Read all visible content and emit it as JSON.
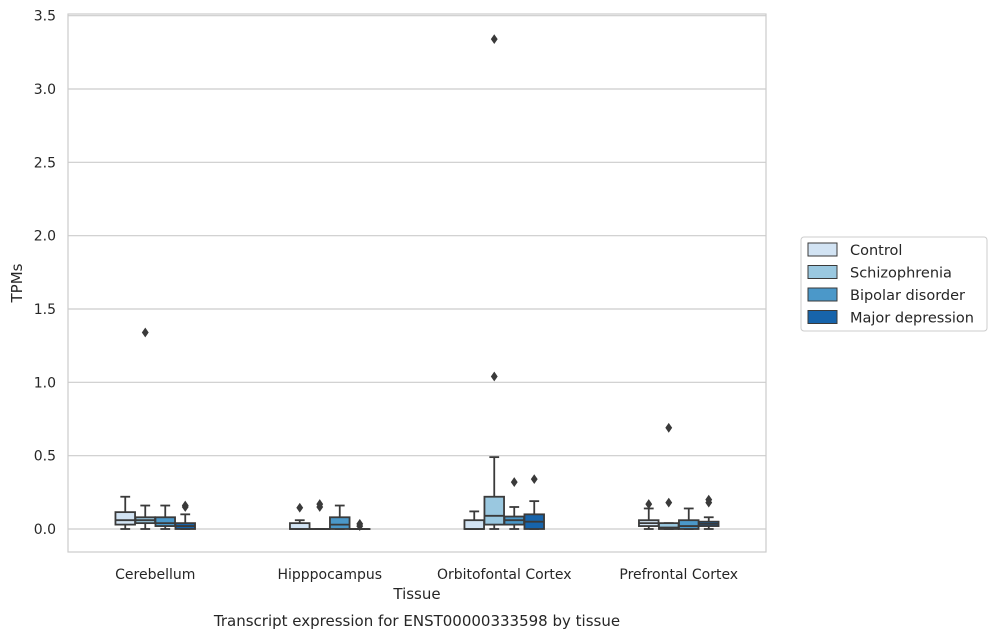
{
  "chart_data": {
    "type": "box",
    "xlabel": "Tissue",
    "ylabel": "TPMs",
    "caption": "Transcript expression for ENST00000333598 by tissue",
    "ylim": [
      -0.16,
      3.52
    ],
    "yticks": [
      "0.0",
      "0.5",
      "1.0",
      "1.5",
      "2.0",
      "2.5",
      "3.0",
      "3.5"
    ],
    "grid": "horizontal",
    "legend_position": "right",
    "categories": [
      "Cerebellum",
      "Hipppocampus",
      "Orbitofontal Cortex",
      "Prefrontal Cortex"
    ],
    "series": [
      {
        "name": "Control",
        "color": "#d2e3f3",
        "boxes": [
          {
            "whislo": 0.0,
            "q1": 0.03,
            "med": 0.06,
            "q3": 0.115,
            "whishi": 0.22,
            "fliers": []
          },
          {
            "whislo": 0.0,
            "q1": 0.0,
            "med": 0.0,
            "q3": 0.04,
            "whishi": 0.06,
            "fliers": [
              0.145
            ]
          },
          {
            "whislo": 0.0,
            "q1": 0.0,
            "med": 0.0,
            "q3": 0.06,
            "whishi": 0.12,
            "fliers": []
          },
          {
            "whislo": 0.0,
            "q1": 0.02,
            "med": 0.04,
            "q3": 0.06,
            "whishi": 0.14,
            "fliers": [
              0.17
            ]
          }
        ]
      },
      {
        "name": "Schizophrenia",
        "color": "#9ac8e0",
        "boxes": [
          {
            "whislo": 0.0,
            "q1": 0.04,
            "med": 0.06,
            "q3": 0.08,
            "whishi": 0.16,
            "fliers": [
              1.34
            ]
          },
          {
            "whislo": 0.0,
            "q1": 0.0,
            "med": 0.0,
            "q3": 0.0,
            "whishi": 0.0,
            "fliers": [
              0.15,
              0.17
            ]
          },
          {
            "whislo": 0.0,
            "q1": 0.03,
            "med": 0.09,
            "q3": 0.22,
            "whishi": 0.49,
            "fliers": [
              1.04,
              3.34
            ]
          },
          {
            "whislo": 0.0,
            "q1": 0.0,
            "med": 0.01,
            "q3": 0.04,
            "whishi": 0.04,
            "fliers": [
              0.18,
              0.69
            ]
          }
        ]
      },
      {
        "name": "Bipolar disorder",
        "color": "#4b98c9",
        "boxes": [
          {
            "whislo": 0.0,
            "q1": 0.02,
            "med": 0.04,
            "q3": 0.08,
            "whishi": 0.16,
            "fliers": []
          },
          {
            "whislo": 0.0,
            "q1": 0.0,
            "med": 0.03,
            "q3": 0.08,
            "whishi": 0.16,
            "fliers": []
          },
          {
            "whislo": 0.0,
            "q1": 0.03,
            "med": 0.06,
            "q3": 0.085,
            "whishi": 0.15,
            "fliers": [
              0.32
            ]
          },
          {
            "whislo": 0.0,
            "q1": 0.0,
            "med": 0.02,
            "q3": 0.06,
            "whishi": 0.14,
            "fliers": []
          }
        ]
      },
      {
        "name": "Major depression",
        "color": "#1764ab",
        "boxes": [
          {
            "whislo": 0.0,
            "q1": 0.0,
            "med": 0.02,
            "q3": 0.04,
            "whishi": 0.1,
            "fliers": [
              0.15,
              0.16
            ]
          },
          {
            "whislo": 0.0,
            "q1": 0.0,
            "med": 0.0,
            "q3": 0.0,
            "whishi": 0.0,
            "fliers": [
              0.02,
              0.035
            ]
          },
          {
            "whislo": 0.0,
            "q1": 0.0,
            "med": 0.05,
            "q3": 0.1,
            "whishi": 0.19,
            "fliers": [
              0.34
            ]
          },
          {
            "whislo": 0.0,
            "q1": 0.02,
            "med": 0.035,
            "q3": 0.05,
            "whishi": 0.08,
            "fliers": [
              0.18,
              0.2
            ]
          }
        ]
      }
    ]
  }
}
